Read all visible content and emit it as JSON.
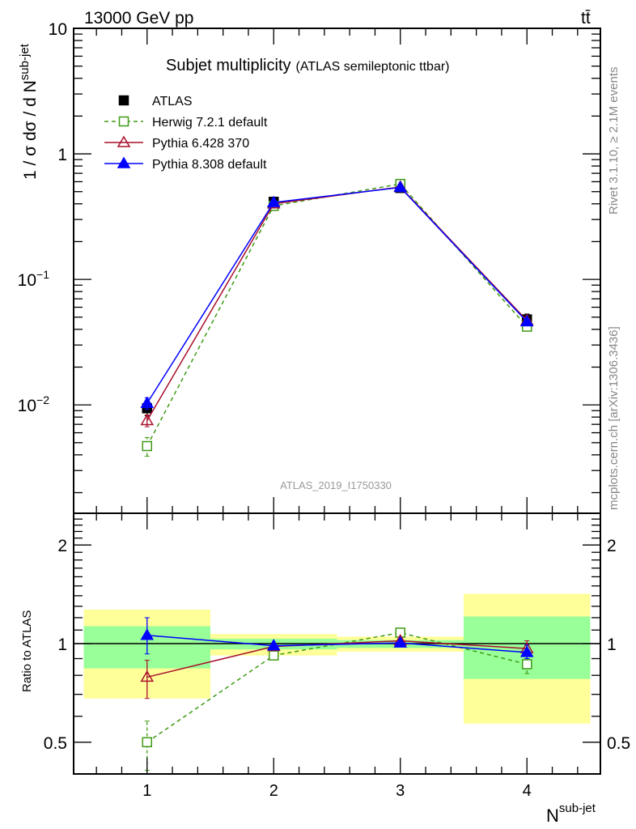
{
  "header": {
    "energy_label": "13000 GeV pp",
    "process_label": "tt̄",
    "title_main": "Subjet multiplicity",
    "title_sub": "(ATLAS semileptonic ttbar)",
    "side_label_top": "Rivet 3.1.10, ≥ 2.1M events",
    "side_label_bottom": "mcplots.cern.ch [arXiv:1306.3436]",
    "analysis_id": "ATLAS_2019_I1750330"
  },
  "chart_data": [
    {
      "type": "line",
      "scale": "log",
      "ylabel": "1 / σ dσ / d N",
      "ylabel_sup": "sub-jet",
      "ylim": [
        0.00137,
        10
      ],
      "xlim": [
        0.42,
        4.58
      ],
      "x": [
        1,
        2,
        3,
        4
      ],
      "yticks": [
        {
          "v": 10,
          "label": "10"
        },
        {
          "v": 1,
          "label": "1"
        },
        {
          "v": 0.1,
          "label": "10",
          "exp": "−1"
        },
        {
          "v": 0.01,
          "label": "10",
          "exp": "−2"
        }
      ],
      "legend_position": "top-left",
      "series": [
        {
          "name": "ATLAS",
          "color": "#000000",
          "marker": "filled-square",
          "values": [
            0.0094,
            0.415,
            0.535,
            0.048
          ],
          "yerr": [
            0.0012,
            0.015,
            0.015,
            0.005
          ]
        },
        {
          "name": "Herwig 7.2.1 default",
          "color": "#3f9a14",
          "marker": "open-square",
          "dashed": true,
          "values": [
            0.0047,
            0.385,
            0.576,
            0.042
          ],
          "yerr": [
            0.0008,
            0.005,
            0.005,
            0.002
          ]
        },
        {
          "name": "Pythia 6.428 370",
          "color": "#a8102c",
          "marker": "open-triangle",
          "values": [
            0.0075,
            0.4,
            0.545,
            0.047
          ],
          "yerr": [
            0.0008,
            0.005,
            0.005,
            0.002
          ]
        },
        {
          "name": "Pythia 8.308 default",
          "color": "#0000ff",
          "marker": "filled-triangle",
          "values": [
            0.0103,
            0.41,
            0.54,
            0.046
          ],
          "yerr": [
            0.0011,
            0.005,
            0.005,
            0.002
          ]
        }
      ]
    },
    {
      "type": "line",
      "scale": "log",
      "ylabel": "Ratio to ATLAS",
      "xlabel": "N",
      "xlabel_sup": "sub-jet",
      "ylim": [
        0.4,
        2.5
      ],
      "xlim": [
        0.42,
        4.58
      ],
      "x": [
        1,
        2,
        3,
        4
      ],
      "xticks": [
        "1",
        "2",
        "3",
        "4"
      ],
      "yticks": [
        {
          "v": 2,
          "label": "2"
        },
        {
          "v": 1,
          "label": "1"
        },
        {
          "v": 0.5,
          "label": "0.5"
        }
      ],
      "bands": {
        "bins": [
          [
            0.5,
            1.5
          ],
          [
            1.5,
            2.5
          ],
          [
            2.5,
            3.5
          ],
          [
            3.5,
            4.5
          ]
        ],
        "yellow": [
          [
            0.68,
            1.27
          ],
          [
            0.92,
            1.07
          ],
          [
            0.945,
            1.05
          ],
          [
            0.57,
            1.42
          ]
        ],
        "green": [
          [
            0.84,
            1.13
          ],
          [
            0.96,
            1.035
          ],
          [
            0.97,
            1.025
          ],
          [
            0.78,
            1.21
          ]
        ],
        "yellow_color": "#ffff99",
        "green_color": "#99ff99"
      },
      "series": [
        {
          "name": "Herwig 7.2.1 default",
          "values": [
            0.5,
            0.92,
            1.08,
            0.865
          ],
          "err_lo": [
            0.41,
            0.91,
            1.07,
            0.81
          ],
          "err_hi": [
            0.58,
            0.93,
            1.09,
            0.92
          ]
        },
        {
          "name": "Pythia 6.428 370",
          "values": [
            0.79,
            0.98,
            1.02,
            0.966
          ],
          "err_lo": [
            0.68,
            0.975,
            1.015,
            0.93
          ],
          "err_hi": [
            0.89,
            0.985,
            1.025,
            1.02
          ]
        },
        {
          "name": "Pythia 8.308 default",
          "values": [
            1.06,
            0.985,
            1.005,
            0.94
          ],
          "err_lo": [
            0.93,
            0.98,
            1.0,
            0.9
          ],
          "err_hi": [
            1.2,
            0.99,
            1.01,
            0.99
          ]
        }
      ]
    }
  ]
}
